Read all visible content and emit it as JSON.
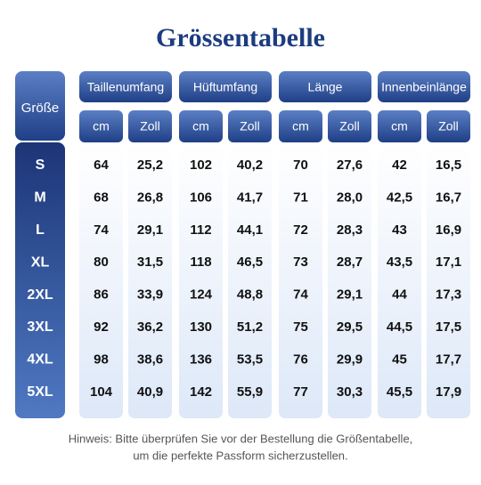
{
  "header": {
    "title": "Grössentabelle"
  },
  "table": {
    "corner": "Größe",
    "groups": [
      "Taillenumfang",
      "Hüftumfang",
      "Länge",
      "Innenbeinlänge"
    ],
    "units": [
      "cm",
      "Zoll",
      "cm",
      "Zoll",
      "cm",
      "Zoll",
      "cm",
      "Zoll"
    ],
    "sizes": [
      "S",
      "M",
      "L",
      "XL",
      "2XL",
      "3XL",
      "4XL",
      "5XL"
    ],
    "rows": [
      [
        "64",
        "25,2",
        "102",
        "40,2",
        "70",
        "27,6",
        "42",
        "16,5"
      ],
      [
        "68",
        "26,8",
        "106",
        "41,7",
        "71",
        "28,0",
        "42,5",
        "16,7"
      ],
      [
        "74",
        "29,1",
        "112",
        "44,1",
        "72",
        "28,3",
        "43",
        "16,9"
      ],
      [
        "80",
        "31,5",
        "118",
        "46,5",
        "73",
        "28,7",
        "43,5",
        "17,1"
      ],
      [
        "86",
        "33,9",
        "124",
        "48,8",
        "74",
        "29,1",
        "44",
        "17,3"
      ],
      [
        "92",
        "36,2",
        "130",
        "51,2",
        "75",
        "29,5",
        "44,5",
        "17,5"
      ],
      [
        "98",
        "38,6",
        "136",
        "53,5",
        "76",
        "29,9",
        "45",
        "17,7"
      ],
      [
        "104",
        "40,9",
        "142",
        "55,9",
        "77",
        "30,3",
        "45,5",
        "17,9"
      ]
    ]
  },
  "footer": {
    "lines": [
      "Hinweis: Bitte überprüfen Sie vor der Bestellung die Größentabelle,",
      "um die perfekte Passform sicherzustellen."
    ]
  }
}
